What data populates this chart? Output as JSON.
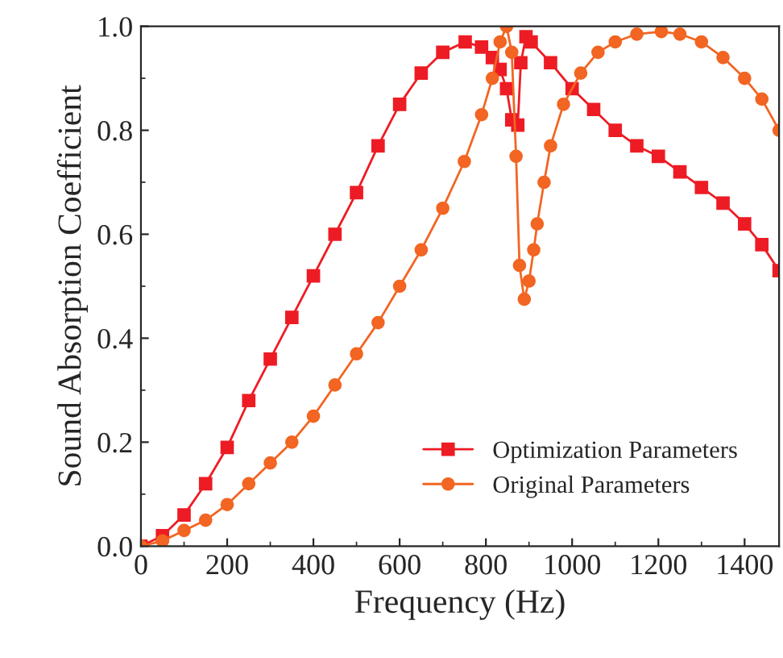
{
  "chart_data": {
    "type": "line",
    "xlabel": "Frequency (Hz)",
    "ylabel": "Sound Absorption Coefficient",
    "xlim": [
      0,
      1480
    ],
    "ylim": [
      0,
      1.0
    ],
    "xticks": [
      0,
      200,
      400,
      600,
      800,
      1000,
      1200,
      1400
    ],
    "yticks": [
      {
        "value": 0,
        "label": "0.0"
      },
      0.2,
      0.4,
      0.6,
      0.8,
      {
        "value": 1.0,
        "label": "1.0"
      }
    ],
    "legend": "bottom right",
    "grid": false,
    "series": [
      {
        "name": "Optimization Parameters",
        "color": "#ed1c24",
        "marker": "square",
        "x": [
          0,
          50,
          100,
          150,
          200,
          250,
          300,
          350,
          400,
          450,
          500,
          550,
          600,
          650,
          700,
          752,
          790,
          815,
          833,
          848,
          860,
          874,
          881,
          893,
          905,
          950,
          1000,
          1050,
          1100,
          1150,
          1200,
          1250,
          1300,
          1350,
          1400,
          1440,
          1480
        ],
        "values": [
          0.0,
          0.02,
          0.06,
          0.12,
          0.19,
          0.28,
          0.36,
          0.44,
          0.52,
          0.6,
          0.68,
          0.77,
          0.85,
          0.91,
          0.95,
          0.97,
          0.96,
          0.94,
          0.917,
          0.88,
          0.82,
          0.81,
          0.93,
          0.98,
          0.97,
          0.93,
          0.88,
          0.84,
          0.8,
          0.77,
          0.75,
          0.72,
          0.69,
          0.66,
          0.62,
          0.58,
          0.53
        ]
      },
      {
        "name": "Original Parameters",
        "color": "#f26522",
        "marker": "circle",
        "x": [
          0,
          50,
          100,
          150,
          200,
          250,
          300,
          350,
          400,
          450,
          500,
          550,
          600,
          650,
          700,
          750,
          790,
          815,
          833,
          848,
          860,
          870,
          878,
          889,
          900,
          911,
          919,
          935,
          950,
          980,
          1020,
          1060,
          1100,
          1150,
          1207,
          1250,
          1300,
          1350,
          1400,
          1440,
          1480
        ],
        "values": [
          0.0,
          0.01,
          0.03,
          0.05,
          0.08,
          0.12,
          0.16,
          0.2,
          0.25,
          0.31,
          0.37,
          0.43,
          0.5,
          0.57,
          0.65,
          0.74,
          0.83,
          0.9,
          0.97,
          1.0,
          0.95,
          0.75,
          0.54,
          0.475,
          0.51,
          0.57,
          0.62,
          0.7,
          0.77,
          0.85,
          0.91,
          0.95,
          0.97,
          0.985,
          0.99,
          0.985,
          0.97,
          0.94,
          0.9,
          0.86,
          0.8
        ]
      }
    ]
  }
}
